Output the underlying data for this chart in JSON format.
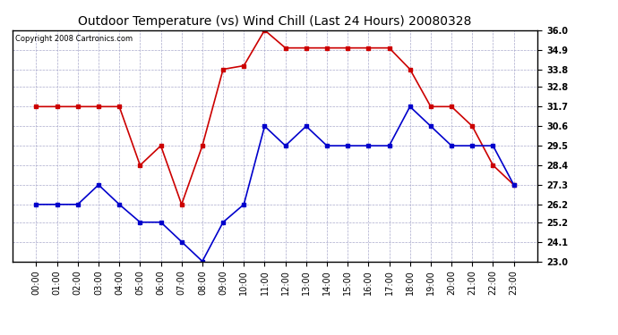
{
  "title": "Outdoor Temperature (vs) Wind Chill (Last 24 Hours) 20080328",
  "copyright": "Copyright 2008 Cartronics.com",
  "hours": [
    "00:00",
    "01:00",
    "02:00",
    "03:00",
    "04:00",
    "05:00",
    "06:00",
    "07:00",
    "08:00",
    "09:00",
    "10:00",
    "11:00",
    "12:00",
    "13:00",
    "14:00",
    "15:00",
    "16:00",
    "17:00",
    "18:00",
    "19:00",
    "20:00",
    "21:00",
    "22:00",
    "23:00"
  ],
  "outdoor_temp": [
    31.7,
    31.7,
    31.7,
    31.7,
    31.7,
    28.4,
    29.5,
    26.2,
    29.5,
    33.8,
    34.0,
    36.0,
    35.0,
    35.0,
    35.0,
    35.0,
    35.0,
    35.0,
    33.8,
    31.7,
    31.7,
    30.6,
    28.4,
    27.3
  ],
  "wind_chill": [
    26.2,
    26.2,
    26.2,
    27.3,
    26.2,
    25.2,
    25.2,
    24.1,
    23.0,
    25.2,
    26.2,
    30.6,
    29.5,
    30.6,
    29.5,
    29.5,
    29.5,
    29.5,
    31.7,
    30.6,
    29.5,
    29.5,
    29.5,
    27.3
  ],
  "temp_color": "#cc0000",
  "wind_chill_color": "#0000cc",
  "bg_color": "#ffffff",
  "grid_color": "#aaaacc",
  "ylim": [
    23.0,
    36.0
  ],
  "yticks": [
    23.0,
    24.1,
    25.2,
    26.2,
    27.3,
    28.4,
    29.5,
    30.6,
    31.7,
    32.8,
    33.8,
    34.9,
    36.0
  ],
  "title_fontsize": 10,
  "copyright_fontsize": 6,
  "tick_fontsize": 7,
  "marker": "s",
  "markersize": 3,
  "linewidth": 1.2
}
